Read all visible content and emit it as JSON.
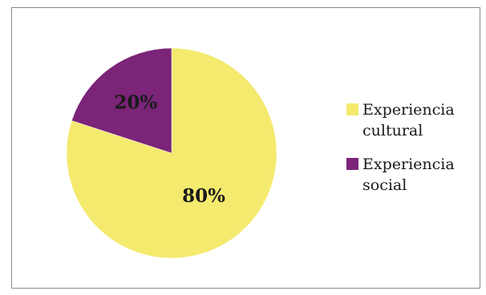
{
  "chart_data": {
    "type": "pie",
    "title": "",
    "categories": [
      "Experiencia cultural",
      "Experiencia social"
    ],
    "values": [
      80,
      20
    ],
    "value_labels": [
      "80%",
      "20%"
    ],
    "colors": [
      "#F4EA6E",
      "#7B2478"
    ],
    "start_angle_deg": 0,
    "direction": "clockwise",
    "legend_position": "right"
  },
  "legend": {
    "items": [
      {
        "label": "Experiencia cultural",
        "color": "#F4EA6E"
      },
      {
        "label": "Experiencia social",
        "color": "#7B2478"
      }
    ]
  }
}
